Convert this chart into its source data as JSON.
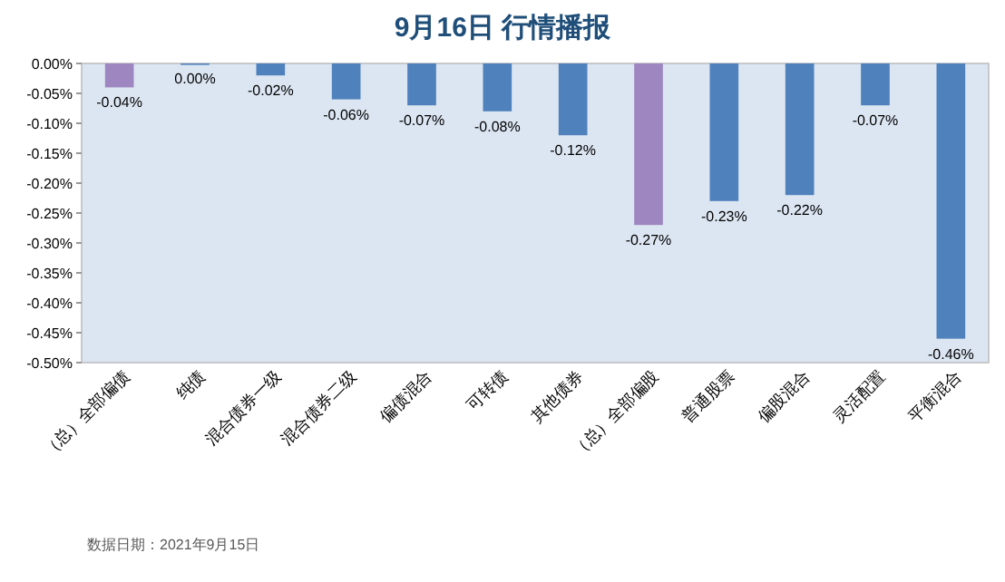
{
  "chart_data": {
    "type": "bar",
    "title": "9月16日  行情播报",
    "categories": [
      "（总）全部偏债",
      "纯债",
      "混合债券一级",
      "混合债券二级",
      "偏债混合",
      "可转债",
      "其他债券",
      "（总）全部偏股",
      "普通股票",
      "偏股混合",
      "灵活配置",
      "平衡混合"
    ],
    "values": [
      -0.04,
      0.0,
      -0.02,
      -0.06,
      -0.07,
      -0.08,
      -0.12,
      -0.27,
      -0.23,
      -0.22,
      -0.07,
      -0.46
    ],
    "colors": [
      "#9e86c0",
      "#4f81bd",
      "#4f81bd",
      "#4f81bd",
      "#4f81bd",
      "#4f81bd",
      "#4f81bd",
      "#9e86c0",
      "#4f81bd",
      "#4f81bd",
      "#4f81bd",
      "#4f81bd"
    ],
    "value_labels": [
      "-0.04%",
      "0.00%",
      "-0.02%",
      "-0.06%",
      "-0.07%",
      "-0.08%",
      "-0.12%",
      "-0.27%",
      "-0.23%",
      "-0.22%",
      "-0.07%",
      "-0.46%"
    ],
    "ylim": [
      -0.5,
      0
    ],
    "yticks": [
      {
        "value": 0,
        "label": "0.00%"
      },
      {
        "value": -0.05,
        "label": "-0.05%"
      },
      {
        "value": -0.1,
        "label": "-0.10%"
      },
      {
        "value": -0.15,
        "label": "-0.15%"
      },
      {
        "value": -0.2,
        "label": "-0.20%"
      },
      {
        "value": -0.25,
        "label": "-0.25%"
      },
      {
        "value": -0.3,
        "label": "-0.30%"
      },
      {
        "value": -0.35,
        "label": "-0.35%"
      },
      {
        "value": -0.4,
        "label": "-0.40%"
      },
      {
        "value": -0.45,
        "label": "-0.45%"
      },
      {
        "value": -0.5,
        "label": "-0.50%"
      }
    ],
    "annotations": [
      "数据日期：2021年9月15日"
    ]
  }
}
